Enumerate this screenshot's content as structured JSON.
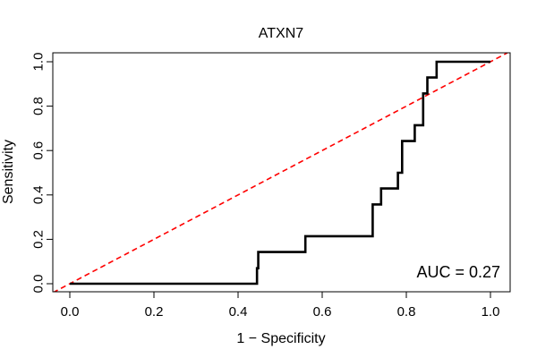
{
  "chart_data": {
    "type": "line",
    "title": "ATXN7",
    "xlabel": "1 − Specificity",
    "ylabel": "Sensitivity",
    "xlim": [
      0,
      1
    ],
    "ylim": [
      0,
      1
    ],
    "xticks": [
      0.0,
      0.2,
      0.4,
      0.6,
      0.8,
      1.0
    ],
    "xtick_labels": [
      "0.0",
      "0.2",
      "0.4",
      "0.6",
      "0.8",
      "1.0"
    ],
    "yticks": [
      0.0,
      0.2,
      0.4,
      0.6,
      0.8,
      1.0
    ],
    "ytick_labels": [
      "0.0",
      "0.2",
      "0.4",
      "0.6",
      "0.8",
      "1.0"
    ],
    "grid": false,
    "annotation": "AUC = 0.27",
    "series": [
      {
        "name": "ROC curve",
        "color": "#000000",
        "style": "solid",
        "x": [
          0.0,
          0.445,
          0.445,
          0.448,
          0.448,
          0.56,
          0.56,
          0.72,
          0.72,
          0.74,
          0.74,
          0.78,
          0.78,
          0.79,
          0.79,
          0.8,
          0.8,
          0.82,
          0.82,
          0.84,
          0.84,
          0.85,
          0.85,
          0.867,
          0.867,
          0.872,
          0.872,
          1.0
        ],
        "y": [
          0.0,
          0.0,
          0.07,
          0.07,
          0.143,
          0.143,
          0.214,
          0.214,
          0.357,
          0.357,
          0.429,
          0.429,
          0.5,
          0.5,
          0.643,
          0.643,
          0.643,
          0.643,
          0.714,
          0.714,
          0.857,
          0.857,
          0.929,
          0.929,
          0.929,
          0.929,
          1.0,
          1.0
        ]
      },
      {
        "name": "Reference diagonal",
        "color": "#ff0000",
        "style": "dashed",
        "x": [
          -0.04,
          1.04
        ],
        "y": [
          -0.04,
          1.04
        ]
      }
    ]
  }
}
